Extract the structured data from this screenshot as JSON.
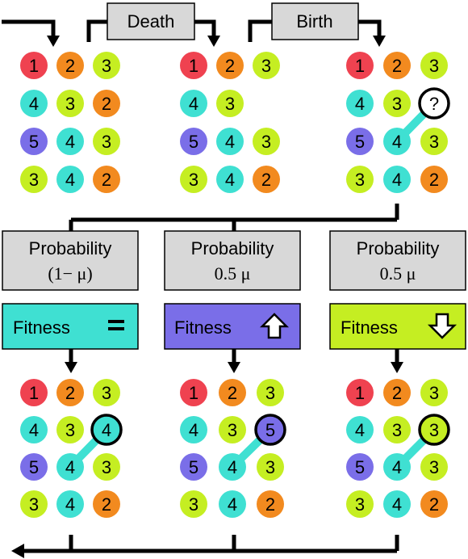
{
  "colors": {
    "1": "#ef4250",
    "2": "#f28a1f",
    "3": "#c5ee22",
    "4": "#3fe0d2",
    "5": "#7a6ee8",
    "box_gray": "#d8d8d8",
    "fitness_neutral": "#3fe0d2",
    "fitness_up": "#7a6ee8",
    "fitness_down": "#c5ee22"
  },
  "top_labels": {
    "death": "Death",
    "birth": "Birth"
  },
  "grids": {
    "initial": [
      [
        1,
        2,
        3
      ],
      [
        4,
        3,
        2
      ],
      [
        5,
        4,
        3
      ],
      [
        3,
        4,
        2
      ]
    ],
    "after_death": [
      [
        1,
        2,
        3
      ],
      [
        4,
        3,
        null
      ],
      [
        5,
        4,
        3
      ],
      [
        3,
        4,
        2
      ]
    ],
    "after_birth": [
      [
        1,
        2,
        3
      ],
      [
        4,
        3,
        "?"
      ],
      [
        5,
        4,
        3
      ],
      [
        3,
        4,
        2
      ]
    ],
    "result_neutral": [
      [
        1,
        2,
        3
      ],
      [
        4,
        3,
        4
      ],
      [
        5,
        4,
        3
      ],
      [
        3,
        4,
        2
      ]
    ],
    "result_up": [
      [
        1,
        2,
        3
      ],
      [
        4,
        3,
        5
      ],
      [
        5,
        4,
        3
      ],
      [
        3,
        4,
        2
      ]
    ],
    "result_down": [
      [
        1,
        2,
        3
      ],
      [
        4,
        3,
        3
      ],
      [
        5,
        4,
        3
      ],
      [
        3,
        4,
        2
      ]
    ]
  },
  "branches": [
    {
      "prob_line1": "Probability",
      "prob_line2": "(1− μ)",
      "fitness_label": "Fitness",
      "fitness_symbol": "equals-icon"
    },
    {
      "prob_line1": "Probability",
      "prob_line2": "0.5 μ",
      "fitness_label": "Fitness",
      "fitness_symbol": "up-arrow-icon"
    },
    {
      "prob_line1": "Probability",
      "prob_line2": "0.5 μ",
      "fitness_label": "Fitness",
      "fitness_symbol": "down-arrow-icon"
    }
  ]
}
